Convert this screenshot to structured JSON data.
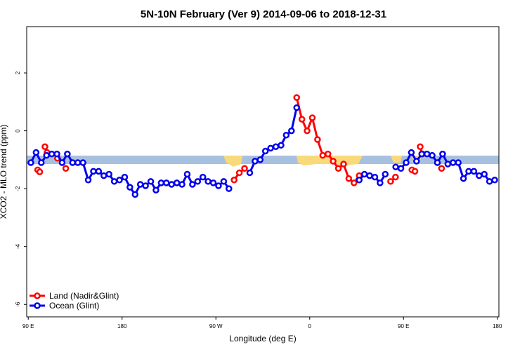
{
  "chart_data": {
    "type": "line",
    "title": "5N-10N February (Ver 9)   2014-09-06 to 2018-12-31",
    "x_label": "Longitude (deg E)",
    "y_label": "XCO2 - MLO trend (ppm)",
    "xlim": [
      88.5,
      541.5
    ],
    "ylim": [
      -6.43,
      3.6
    ],
    "xticks": [
      {
        "value": 90,
        "label": "90 E"
      },
      180,
      {
        "value": 270,
        "label": "90 W"
      },
      {
        "value": 360,
        "label": "0"
      },
      {
        "value": 450,
        "label": "90 E"
      },
      {
        "value": 540,
        "label": "180"
      }
    ],
    "yticks": [
      2,
      0,
      -2,
      -4,
      -6
    ],
    "legend": "bottomleft",
    "series": [
      {
        "name": "Land (Nadir&Glint)",
        "color": "#ff0000",
        "x": [
          99,
          101,
          103.5,
          106,
          108,
          113,
          118,
          122,
          126,
          200,
          287.5,
          292.5,
          297.5,
          320,
          347.5,
          352.5,
          357.5,
          362.5,
          367.5,
          372.5,
          377.5,
          382.5,
          387.5,
          392.5,
          397.5,
          402.5,
          407.5,
          420,
          437.6,
          442.3,
          450,
          458,
          461,
          463,
          466,
          468,
          477,
          486.5
        ],
        "values": [
          -1.35,
          -1.42,
          null,
          -0.55,
          -0.75,
          null,
          -0.95,
          null,
          -1.3,
          null,
          -1.7,
          -1.45,
          -1.3,
          null,
          1.15,
          0.4,
          0.0,
          0.45,
          -0.3,
          -0.85,
          -0.8,
          -1.05,
          -1.3,
          -1.15,
          -1.65,
          -1.8,
          -1.55,
          null,
          -1.75,
          -1.6,
          null,
          -1.35,
          -1.4,
          null,
          -0.55,
          -0.8,
          null,
          -1.3
        ]
      },
      {
        "name": "Ocean (Glint)",
        "color": "#0000ee",
        "x": [
          92.5,
          97.5,
          102.5,
          107.5,
          112.5,
          117.5,
          122.5,
          127.5,
          132.5,
          137.5,
          142.5,
          147.5,
          152.5,
          157.5,
          162.5,
          167.5,
          172.5,
          177.5,
          182.5,
          187.5,
          192.5,
          197.5,
          202.5,
          207.5,
          212.5,
          217.5,
          222.5,
          227.5,
          232.5,
          237.5,
          242.5,
          247.5,
          252.5,
          257.5,
          262.5,
          267.5,
          272.5,
          277.5,
          282.5,
          292.5,
          302.5,
          307.5,
          312.5,
          317.5,
          322.5,
          327.5,
          332.5,
          337.5,
          342.5,
          347.5,
          377.5,
          407.5,
          412.5,
          417.5,
          422.5,
          427.5,
          432.5,
          437.5,
          442.5,
          447.5,
          452.5,
          457.5,
          462.5,
          467.5,
          472.5,
          477.5,
          482.5,
          487.5,
          492.5,
          497.5,
          502.5,
          507.5,
          512.5,
          517.5,
          522.5,
          527.5,
          532.5,
          537.5
        ],
        "values": [
          -1.1,
          -0.75,
          -1.1,
          -0.85,
          -0.8,
          -0.8,
          -1.1,
          -0.8,
          -1.1,
          -1.1,
          -1.1,
          -1.7,
          -1.4,
          -1.4,
          -1.55,
          -1.5,
          -1.75,
          -1.7,
          -1.6,
          -1.95,
          -2.2,
          -1.85,
          -1.9,
          -1.75,
          -2.05,
          -1.8,
          -1.8,
          -1.85,
          -1.8,
          -1.85,
          -1.5,
          -1.85,
          -1.75,
          -1.6,
          -1.75,
          -1.8,
          -1.9,
          -1.75,
          -2.0,
          null,
          -1.45,
          -1.05,
          -1.0,
          -0.7,
          -0.6,
          -0.55,
          -0.5,
          -0.15,
          0.0,
          0.8,
          null,
          -1.7,
          -1.5,
          -1.55,
          -1.6,
          -1.8,
          -1.5,
          null,
          -1.25,
          -1.3,
          -1.1,
          -0.75,
          -1.05,
          -0.8,
          -0.8,
          -0.85,
          -1.1,
          -0.8,
          -1.15,
          -1.1,
          -1.1,
          -1.65,
          -1.4,
          -1.4,
          -1.55,
          -1.5,
          -1.75,
          -1.7
        ]
      }
    ]
  }
}
